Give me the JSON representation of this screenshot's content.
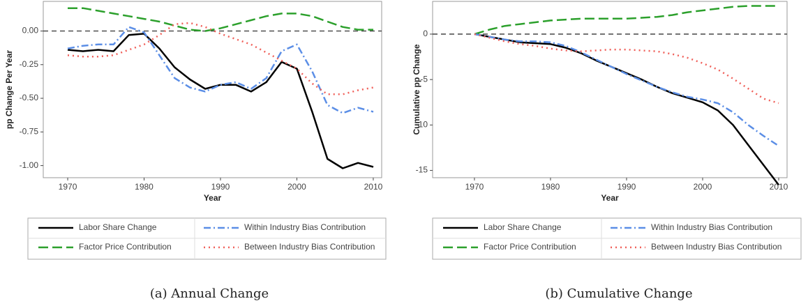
{
  "chart_data": [
    {
      "type": "line",
      "xlabel": "Year",
      "ylabel": "pp Change Per Year",
      "caption": "(a) Annual Change",
      "x": [
        1970,
        1972,
        1974,
        1976,
        1978,
        1980,
        1982,
        1984,
        1986,
        1988,
        1990,
        1992,
        1994,
        1996,
        1998,
        2000,
        2002,
        2004,
        2006,
        2008,
        2010
      ],
      "series": [
        {
          "name": "Labor Share Change",
          "color": "#000000",
          "values": [
            -0.14,
            -0.15,
            -0.14,
            -0.15,
            -0.03,
            -0.02,
            -0.13,
            -0.27,
            -0.36,
            -0.43,
            -0.4,
            -0.4,
            -0.45,
            -0.38,
            -0.23,
            -0.28,
            -0.6,
            -0.95,
            -1.02,
            -0.98,
            -1.01
          ]
        },
        {
          "name": "Factor Price Contribution",
          "color": "#2ca02c",
          "values": [
            0.17,
            0.17,
            0.15,
            0.13,
            0.11,
            0.09,
            0.07,
            0.04,
            0.01,
            0.0,
            0.02,
            0.05,
            0.08,
            0.11,
            0.13,
            0.13,
            0.11,
            0.07,
            0.03,
            0.01,
            0.01
          ]
        },
        {
          "name": "Within Industry Bias Contribution",
          "color": "#5b8ee6",
          "values": [
            -0.13,
            -0.11,
            -0.1,
            -0.1,
            0.03,
            -0.01,
            -0.18,
            -0.35,
            -0.42,
            -0.45,
            -0.4,
            -0.38,
            -0.43,
            -0.35,
            -0.15,
            -0.1,
            -0.3,
            -0.55,
            -0.61,
            -0.57,
            -0.6
          ]
        },
        {
          "name": "Between Industry Bias Contribution",
          "color": "#f0605a",
          "values": [
            -0.18,
            -0.19,
            -0.19,
            -0.18,
            -0.14,
            -0.1,
            -0.03,
            0.05,
            0.06,
            0.03,
            -0.02,
            -0.06,
            -0.1,
            -0.16,
            -0.22,
            -0.28,
            -0.39,
            -0.47,
            -0.47,
            -0.44,
            -0.42
          ]
        }
      ],
      "reference_line": 0,
      "xlim": [
        1966.8,
        2011.1
      ],
      "xticks": [
        1970,
        1980,
        1990,
        2000,
        2010
      ],
      "ylim": [
        -1.09,
        0.22
      ],
      "yticks": [
        {
          "value": 0,
          "label": "0.00"
        },
        -0.25,
        {
          "value": -0.5,
          "label": "-0.50"
        },
        -0.75,
        {
          "value": -1,
          "label": "-1.00"
        }
      ],
      "grid": false
    },
    {
      "type": "line",
      "xlabel": "Year",
      "ylabel": "Cumulative pp Change",
      "caption": "(b) Cumulative Change",
      "x": [
        1970,
        1972,
        1974,
        1976,
        1978,
        1980,
        1982,
        1984,
        1986,
        1988,
        1990,
        1992,
        1994,
        1996,
        1998,
        2000,
        2002,
        2004,
        2006,
        2008,
        2010
      ],
      "series": [
        {
          "name": "Labor Share Change",
          "color": "#000000",
          "values": [
            0,
            -0.3,
            -0.6,
            -0.9,
            -1.0,
            -1.1,
            -1.5,
            -2.1,
            -2.9,
            -3.6,
            -4.3,
            -5.0,
            -5.8,
            -6.5,
            -7.0,
            -7.5,
            -8.4,
            -10.0,
            -12.2,
            -14.4,
            -16.6
          ]
        },
        {
          "name": "Factor Price Contribution",
          "color": "#2ca02c",
          "values": [
            0,
            0.5,
            0.9,
            1.1,
            1.3,
            1.5,
            1.6,
            1.7,
            1.7,
            1.7,
            1.7,
            1.8,
            1.9,
            2.1,
            2.4,
            2.6,
            2.8,
            3.0,
            3.1,
            3.1,
            3.1
          ]
        },
        {
          "name": "Within Industry Bias Contribution",
          "color": "#5b8ee6",
          "values": [
            0,
            -0.3,
            -0.6,
            -0.8,
            -0.8,
            -0.9,
            -1.3,
            -2.0,
            -2.8,
            -3.6,
            -4.4,
            -5.1,
            -5.8,
            -6.4,
            -6.9,
            -7.2,
            -7.6,
            -8.6,
            -10.0,
            -11.2,
            -12.3
          ]
        },
        {
          "name": "Between Industry Bias Contribution",
          "color": "#f0605a",
          "values": [
            0,
            -0.4,
            -0.8,
            -1.1,
            -1.3,
            -1.6,
            -1.8,
            -1.9,
            -1.8,
            -1.7,
            -1.7,
            -1.8,
            -1.9,
            -2.2,
            -2.6,
            -3.2,
            -3.9,
            -4.9,
            -6.0,
            -7.1,
            -7.6
          ]
        }
      ],
      "reference_line": 0,
      "xlim": [
        1964.5,
        2011.1
      ],
      "xticks": [
        1970,
        1980,
        1990,
        2000,
        2010
      ],
      "ylim": [
        -15.8,
        3.6
      ],
      "yticks": [
        0,
        -5,
        -10,
        -15
      ],
      "grid": false
    }
  ]
}
